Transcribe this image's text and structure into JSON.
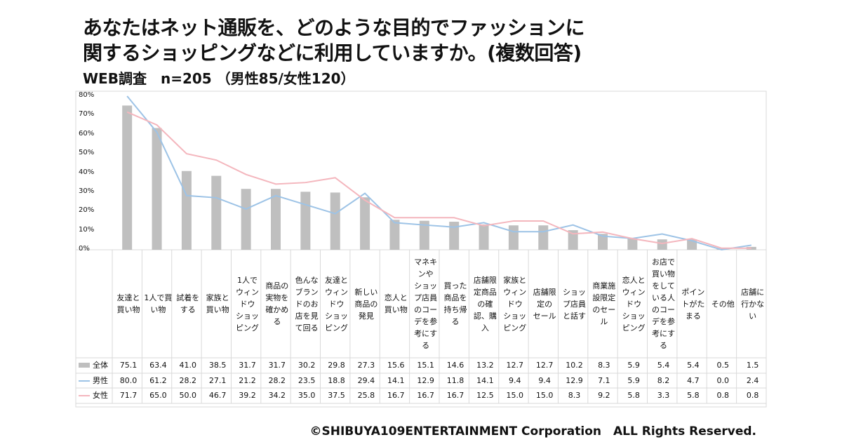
{
  "title_line1": "あなたはネット通販を、どのような目的でファッションに",
  "title_line2": "関するショッピングなどに利用していますか。(複数回答)",
  "subtitle": "WEB調査　n=205 （男性85/女性120）",
  "footer": "©SHIBUYA109ENTERTAINMENT Corporation　ALL Rights Reserved.",
  "chart_data": {
    "type": "bar+line",
    "title": "あなたはネット通販を、どのような目的でファッションに関するショッピングなどに利用していますか。(複数回答)",
    "ylim": [
      0,
      80
    ],
    "yticks": [
      "0%",
      "10%",
      "20%",
      "30%",
      "40%",
      "50%",
      "60%",
      "70%",
      "80%"
    ],
    "categories": [
      "友達と\n買い物",
      "1人で買\nい物",
      "試着を\nする",
      "家族と\n買い物",
      "1人で\nウィン\nドウ\nショッ\nピング",
      "商品の\n実物を\n確かめ\nる",
      "色んな\nブラン\nドのお\n店を見\nて回る",
      "友達と\nウィン\nドウ\nショッ\nピング",
      "新しい\n商品の\n発見",
      "恋人と\n買い物",
      "マネキ\nンや\nショッ\nプ店員\nのコー\nデを参\n考にす\nる",
      "買った\n商品を\n持ち帰\nる",
      "店舗限\n定商品\nの確\n認、購\n入",
      "家族と\nウィン\nドウ\nショッ\nピング",
      "店舗限\n定の\nセール",
      "ショッ\nプ店員\nと話す",
      "商業施\n設限定\nのセー\nル",
      "恋人と\nウィン\nドウ\nショッ\nピング",
      "お店で\n買い物\nをして\nいる人\nのコー\nデを参\n考にす\nる",
      "ポイン\nトがた\nまる",
      "その他",
      "店舗に\n行かな\nい"
    ],
    "series": [
      {
        "name": "全体",
        "type": "bar",
        "color": "#bfbfbf",
        "values": [
          75.1,
          63.4,
          41.0,
          38.5,
          31.7,
          31.7,
          30.2,
          29.8,
          27.3,
          15.6,
          15.1,
          14.6,
          13.2,
          12.7,
          12.7,
          10.2,
          8.3,
          5.9,
          5.4,
          5.4,
          0.5,
          1.5
        ]
      },
      {
        "name": "男性",
        "type": "line",
        "color": "#9dc3e6",
        "values": [
          80.0,
          61.2,
          28.2,
          27.1,
          21.2,
          28.2,
          23.5,
          18.8,
          29.4,
          14.1,
          12.9,
          11.8,
          14.1,
          9.4,
          9.4,
          12.9,
          7.1,
          5.9,
          8.2,
          4.7,
          0.0,
          2.4
        ]
      },
      {
        "name": "女性",
        "type": "line",
        "color": "#f4b6bd",
        "values": [
          71.7,
          65.0,
          50.0,
          46.7,
          39.2,
          34.2,
          35.0,
          37.5,
          25.8,
          16.7,
          16.7,
          16.7,
          12.5,
          15.0,
          15.0,
          8.3,
          9.2,
          5.8,
          3.3,
          5.8,
          0.8,
          0.8
        ]
      }
    ]
  }
}
